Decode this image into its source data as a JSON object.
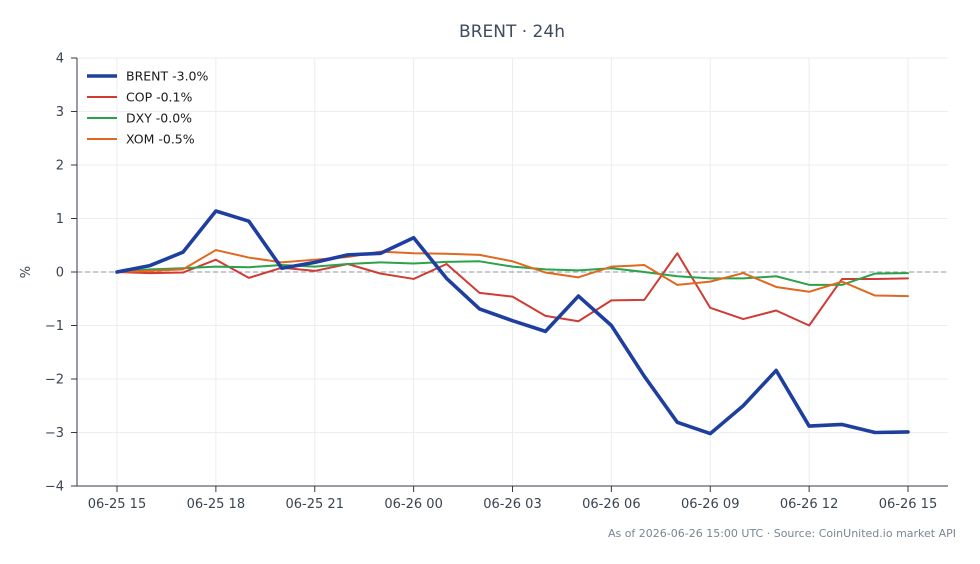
{
  "chart_data": {
    "type": "line",
    "title": "BRENT · 24h",
    "xlabel": "",
    "ylabel": "%",
    "ylim": [
      -4,
      4
    ],
    "y_ticks": [
      -4,
      -3,
      -2,
      -1,
      0,
      1,
      2,
      3,
      4
    ],
    "y_tick_labels": [
      "−4",
      "−3",
      "−2",
      "−1",
      "0",
      "1",
      "2",
      "3",
      "4"
    ],
    "x": [
      "06-25 15",
      "06-25 16",
      "06-25 17",
      "06-25 18",
      "06-25 19",
      "06-25 20",
      "06-25 21",
      "06-25 22",
      "06-25 23",
      "06-26 00",
      "06-26 01",
      "06-26 02",
      "06-26 03",
      "06-26 04",
      "06-26 05",
      "06-26 06",
      "06-26 07",
      "06-26 08",
      "06-26 09",
      "06-26 10",
      "06-26 11",
      "06-26 12",
      "06-26 13",
      "06-26 14",
      "06-26 15"
    ],
    "x_tick_labels": [
      "06-25 15",
      "06-25 18",
      "06-25 21",
      "06-26 00",
      "06-26 03",
      "06-26 06",
      "06-26 09",
      "06-26 12",
      "06-26 15"
    ],
    "x_tick_index": [
      0,
      3,
      6,
      9,
      12,
      15,
      18,
      21,
      24
    ],
    "grid": true,
    "zero_line": true,
    "legend_position": "top-left",
    "series": [
      {
        "name": "BRENT -3.0%",
        "color": "#1f3f9e",
        "emphasis": true,
        "values": [
          0.0,
          0.12,
          0.37,
          1.14,
          0.95,
          0.07,
          0.18,
          0.32,
          0.35,
          0.64,
          -0.12,
          -0.69,
          -0.91,
          -1.11,
          -0.45,
          -1.0,
          -1.95,
          -2.81,
          -3.02,
          -2.5,
          -1.84,
          -2.88,
          -2.85,
          -3.0,
          -2.99
        ]
      },
      {
        "name": "COP -0.1%",
        "color": "#d03b35",
        "emphasis": false,
        "values": [
          0.0,
          -0.02,
          -0.01,
          0.23,
          -0.11,
          0.08,
          0.02,
          0.15,
          -0.03,
          -0.13,
          0.15,
          -0.39,
          -0.46,
          -0.82,
          -0.92,
          -0.53,
          -0.52,
          0.35,
          -0.67,
          -0.88,
          -0.72,
          -1.0,
          -0.13,
          -0.13,
          -0.12
        ]
      },
      {
        "name": "DXY -0.0%",
        "color": "#2ba24a",
        "emphasis": false,
        "values": [
          0.0,
          0.05,
          0.07,
          0.1,
          0.09,
          0.13,
          0.1,
          0.15,
          0.18,
          0.16,
          0.19,
          0.2,
          0.1,
          0.05,
          0.03,
          0.07,
          0.0,
          -0.08,
          -0.12,
          -0.12,
          -0.08,
          -0.24,
          -0.24,
          -0.03,
          -0.02
        ]
      },
      {
        "name": "XOM -0.5%",
        "color": "#e0681f",
        "emphasis": false,
        "values": [
          0.0,
          0.02,
          0.05,
          0.41,
          0.27,
          0.18,
          0.23,
          0.28,
          0.38,
          0.35,
          0.34,
          0.32,
          0.2,
          -0.01,
          -0.1,
          0.1,
          0.13,
          -0.24,
          -0.18,
          -0.02,
          -0.28,
          -0.37,
          -0.18,
          -0.44,
          -0.45
        ]
      }
    ],
    "footnote": "As of 2026-06-26 15:00 UTC · Source: CoinUnited.io market API"
  }
}
